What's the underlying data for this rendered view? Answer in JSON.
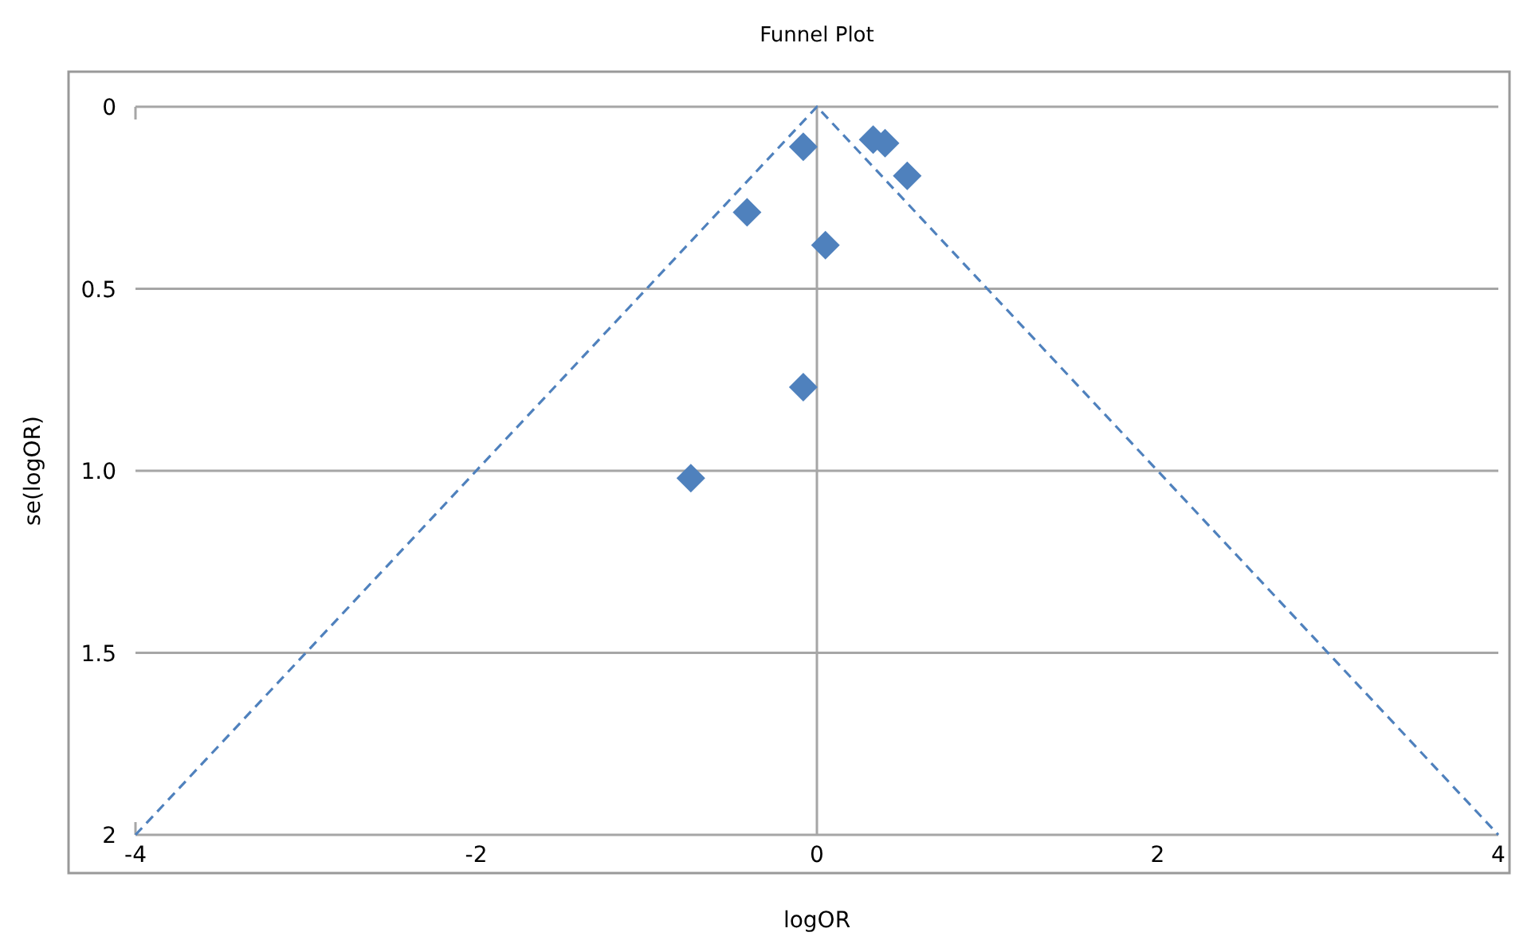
{
  "chart_data": {
    "type": "scatter",
    "title": "Funnel Plot",
    "xlabel": "logOR",
    "ylabel": "se(logOR)",
    "xlim": [
      -4,
      4
    ],
    "xticks": [
      -4,
      -2,
      0,
      2,
      4
    ],
    "ylim": [
      2,
      0
    ],
    "yticks": [
      0,
      0.5,
      {
        "value": 1,
        "label": "1.0"
      },
      1.5,
      2
    ],
    "grid": "y",
    "marker": "diamond",
    "ref_lines": [
      {
        "axis": "x",
        "value": 0,
        "color": "#a6a6a6"
      }
    ],
    "series": [
      {
        "color": "#4f81bd",
        "x": [
          -0.08,
          0.33,
          0.4,
          0.53,
          -0.41,
          0.05,
          -0.08,
          -0.74
        ],
        "values": [
          0.11,
          0.09,
          0.1,
          0.19,
          0.29,
          0.38,
          0.77,
          1.02
        ]
      },
      {
        "type": "line",
        "color": "#4f81bd",
        "line_style": "dashed",
        "marker": "none",
        "x": [
          -4,
          0,
          4
        ],
        "values": [
          2,
          0,
          2
        ]
      }
    ]
  }
}
